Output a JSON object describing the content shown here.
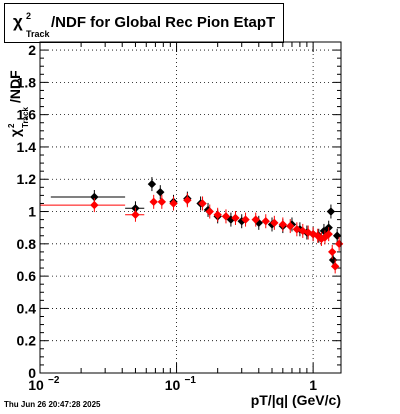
{
  "title": {
    "chi": "χ",
    "sup": "2",
    "sub": "Track",
    "rest": "/NDF for Global Rec Pion EtapT"
  },
  "date_stamp": "Thu Jun 26 20:47:28 2025",
  "chart_data": {
    "type": "scatter",
    "xscale": "log",
    "xlim": [
      0.01,
      1.6
    ],
    "ylim": [
      0,
      2.05
    ],
    "grid": true,
    "xlabel": "pT/|q| (GeV/c)",
    "ylabel": {
      "chi": "χ",
      "sup": "2",
      "sub": "Track",
      "rest": "/NDF"
    },
    "yticks": [
      {
        "v": 0,
        "label": "0"
      },
      {
        "v": 0.2,
        "label": "0.2"
      },
      {
        "v": 0.4,
        "label": "0.4"
      },
      {
        "v": 0.6,
        "label": "0.6"
      },
      {
        "v": 0.8,
        "label": "0.8"
      },
      {
        "v": 1.0,
        "label": "1"
      },
      {
        "v": 1.2,
        "label": "1.2"
      },
      {
        "v": 1.4,
        "label": "1.4"
      },
      {
        "v": 1.6,
        "label": "1.6"
      },
      {
        "v": 1.8,
        "label": "1.8"
      },
      {
        "v": 2.0,
        "label": "2"
      }
    ],
    "xticks": [
      {
        "v": 0.01,
        "base": "10",
        "exp": "−2"
      },
      {
        "v": 0.1,
        "base": "10",
        "exp": "−1"
      },
      {
        "v": 1,
        "base": "1",
        "exp": ""
      }
    ],
    "series": [
      {
        "color": "#000000",
        "points": [
          {
            "x": 0.025,
            "y": 1.09,
            "xlo": 0.012,
            "xhi": 0.042
          },
          {
            "x": 0.05,
            "y": 1.02,
            "xlo": 0.042,
            "xhi": 0.058
          },
          {
            "x": 0.066,
            "y": 1.17
          },
          {
            "x": 0.076,
            "y": 1.12
          },
          {
            "x": 0.095,
            "y": 1.06
          },
          {
            "x": 0.12,
            "y": 1.08
          },
          {
            "x": 0.15,
            "y": 1.05
          },
          {
            "x": 0.17,
            "y": 1.01
          },
          {
            "x": 0.2,
            "y": 0.97
          },
          {
            "x": 0.25,
            "y": 0.95
          },
          {
            "x": 0.3,
            "y": 0.94
          },
          {
            "x": 0.4,
            "y": 0.93
          },
          {
            "x": 0.5,
            "y": 0.92
          },
          {
            "x": 0.6,
            "y": 0.91
          },
          {
            "x": 0.7,
            "y": 0.92
          },
          {
            "x": 0.8,
            "y": 0.89
          },
          {
            "x": 0.9,
            "y": 0.87
          },
          {
            "x": 1.0,
            "y": 0.86
          },
          {
            "x": 1.1,
            "y": 0.85
          },
          {
            "x": 1.2,
            "y": 0.88
          },
          {
            "x": 1.3,
            "y": 0.9
          },
          {
            "x": 1.35,
            "y": 1.0
          },
          {
            "x": 1.4,
            "y": 0.7
          },
          {
            "x": 1.5,
            "y": 0.85
          }
        ]
      },
      {
        "color": "#ff0000",
        "points": [
          {
            "x": 0.025,
            "y": 1.04,
            "xlo": 0.01,
            "xhi": 0.042
          },
          {
            "x": 0.05,
            "y": 0.98,
            "xlo": 0.042,
            "xhi": 0.058
          },
          {
            "x": 0.068,
            "y": 1.06
          },
          {
            "x": 0.078,
            "y": 1.06
          },
          {
            "x": 0.095,
            "y": 1.05
          },
          {
            "x": 0.12,
            "y": 1.07
          },
          {
            "x": 0.155,
            "y": 1.05
          },
          {
            "x": 0.175,
            "y": 1.0
          },
          {
            "x": 0.2,
            "y": 0.98
          },
          {
            "x": 0.23,
            "y": 0.97
          },
          {
            "x": 0.27,
            "y": 0.96
          },
          {
            "x": 0.32,
            "y": 0.95
          },
          {
            "x": 0.38,
            "y": 0.95
          },
          {
            "x": 0.45,
            "y": 0.94
          },
          {
            "x": 0.52,
            "y": 0.93
          },
          {
            "x": 0.6,
            "y": 0.92
          },
          {
            "x": 0.68,
            "y": 0.91
          },
          {
            "x": 0.76,
            "y": 0.89
          },
          {
            "x": 0.84,
            "y": 0.88
          },
          {
            "x": 0.92,
            "y": 0.87
          },
          {
            "x": 1.0,
            "y": 0.86
          },
          {
            "x": 1.08,
            "y": 0.85
          },
          {
            "x": 1.15,
            "y": 0.83
          },
          {
            "x": 1.22,
            "y": 0.84
          },
          {
            "x": 1.3,
            "y": 0.86
          },
          {
            "x": 1.38,
            "y": 0.75
          },
          {
            "x": 1.45,
            "y": 0.66
          },
          {
            "x": 1.55,
            "y": 0.8
          }
        ]
      }
    ]
  }
}
